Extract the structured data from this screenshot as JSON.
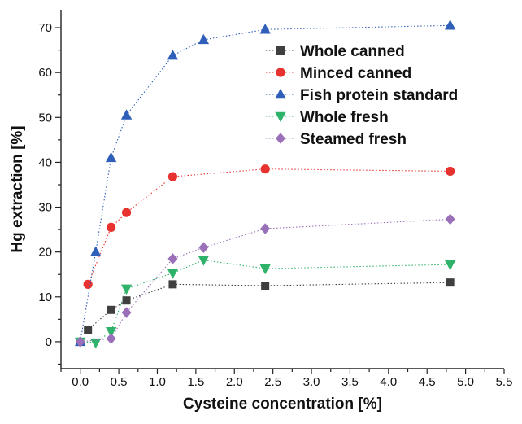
{
  "chart_data": {
    "type": "scatter",
    "title": "",
    "xlabel": "Cysteine concentration [%]",
    "ylabel": "Hg extraction [%]",
    "xlim": [
      -0.25,
      5.5
    ],
    "ylim": [
      -6,
      74
    ],
    "xticks": [
      0.0,
      0.5,
      1.0,
      1.5,
      2.0,
      2.5,
      3.0,
      3.5,
      4.0,
      4.5,
      5.0,
      5.5
    ],
    "xtick_labels": [
      "0.0",
      "0.5",
      "1.0",
      "1.5",
      "2.0",
      "2.5",
      "3.0",
      "3.5",
      "4.0",
      "4.5",
      "5.0",
      "5.5"
    ],
    "yticks": [
      0,
      10,
      20,
      30,
      40,
      50,
      60,
      70
    ],
    "ytick_labels": [
      "0",
      "10",
      "20",
      "30",
      "40",
      "50",
      "60",
      "70"
    ],
    "legend_position": "top-right",
    "series": [
      {
        "name": "Whole canned",
        "marker": "square",
        "color": "#3f3f3f",
        "points": [
          [
            0.1,
            2.7
          ],
          [
            0.4,
            7.1
          ],
          [
            0.6,
            9.2
          ],
          [
            1.2,
            12.8
          ],
          [
            2.4,
            12.5
          ],
          [
            4.8,
            13.2
          ]
        ]
      },
      {
        "name": "Minced canned",
        "marker": "circle",
        "color": "#e8322f",
        "points": [
          [
            0.1,
            12.8
          ],
          [
            0.4,
            25.5
          ],
          [
            0.6,
            28.8
          ],
          [
            1.2,
            36.8
          ],
          [
            2.4,
            38.5
          ],
          [
            4.8,
            38.0
          ]
        ]
      },
      {
        "name": "Fish protein standard",
        "marker": "triangle-up",
        "color": "#2f5fb8",
        "points": [
          [
            0.0,
            0.0
          ],
          [
            0.2,
            20.0
          ],
          [
            0.4,
            41.0
          ],
          [
            0.6,
            50.5
          ],
          [
            1.2,
            63.8
          ],
          [
            1.6,
            67.3
          ],
          [
            2.4,
            69.6
          ],
          [
            4.8,
            70.5
          ]
        ]
      },
      {
        "name": "Whole fresh",
        "marker": "triangle-down",
        "color": "#2fb36b",
        "points": [
          [
            0.0,
            0.0
          ],
          [
            0.2,
            -0.2
          ],
          [
            0.4,
            2.3
          ],
          [
            0.6,
            11.8
          ],
          [
            1.2,
            15.3
          ],
          [
            1.6,
            18.2
          ],
          [
            2.4,
            16.3
          ],
          [
            4.8,
            17.2
          ]
        ]
      },
      {
        "name": "Steamed fresh",
        "marker": "diamond",
        "color": "#9a70b8",
        "points": [
          [
            0.0,
            0.0
          ],
          [
            0.4,
            0.7
          ],
          [
            0.6,
            6.5
          ],
          [
            1.2,
            18.5
          ],
          [
            1.6,
            21.0
          ],
          [
            2.4,
            25.2
          ],
          [
            4.8,
            27.3
          ]
        ]
      }
    ]
  }
}
